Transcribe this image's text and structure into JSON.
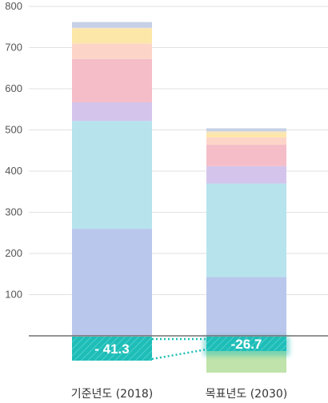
{
  "chart_data": {
    "type": "bar",
    "stacked": true,
    "ylim": [
      -60,
      800
    ],
    "yticks": [
      100,
      200,
      300,
      400,
      500,
      600,
      700,
      800
    ],
    "categories": [
      "기준년도 (2018)",
      "목표년도 (2030)"
    ],
    "series": [
      {
        "color": "#b8c7eb",
        "values": [
          260,
          143
        ]
      },
      {
        "color": "#b7e3ed",
        "values": [
          262,
          227
        ]
      },
      {
        "color": "#d4c4ec",
        "values": [
          45,
          42
        ]
      },
      {
        "color": "#f4bdc8",
        "values": [
          105,
          52
        ]
      },
      {
        "color": "#fcd5c8",
        "values": [
          38,
          18
        ]
      },
      {
        "color": "#fde7a8",
        "values": [
          36,
          10
        ]
      },
      {
        "color": "#f3e3c0",
        "values": [
          2,
          5
        ]
      },
      {
        "color": "#c6d0e6",
        "values": [
          14,
          7
        ]
      }
    ],
    "negative": {
      "labels": [
        "- 41.3",
        "-26.7"
      ],
      "values": [
        -41.3,
        -26.7
      ],
      "color": "#1ebdb8",
      "below_color": "#bfe3aa",
      "below_values": [
        0,
        -26.7
      ]
    }
  }
}
